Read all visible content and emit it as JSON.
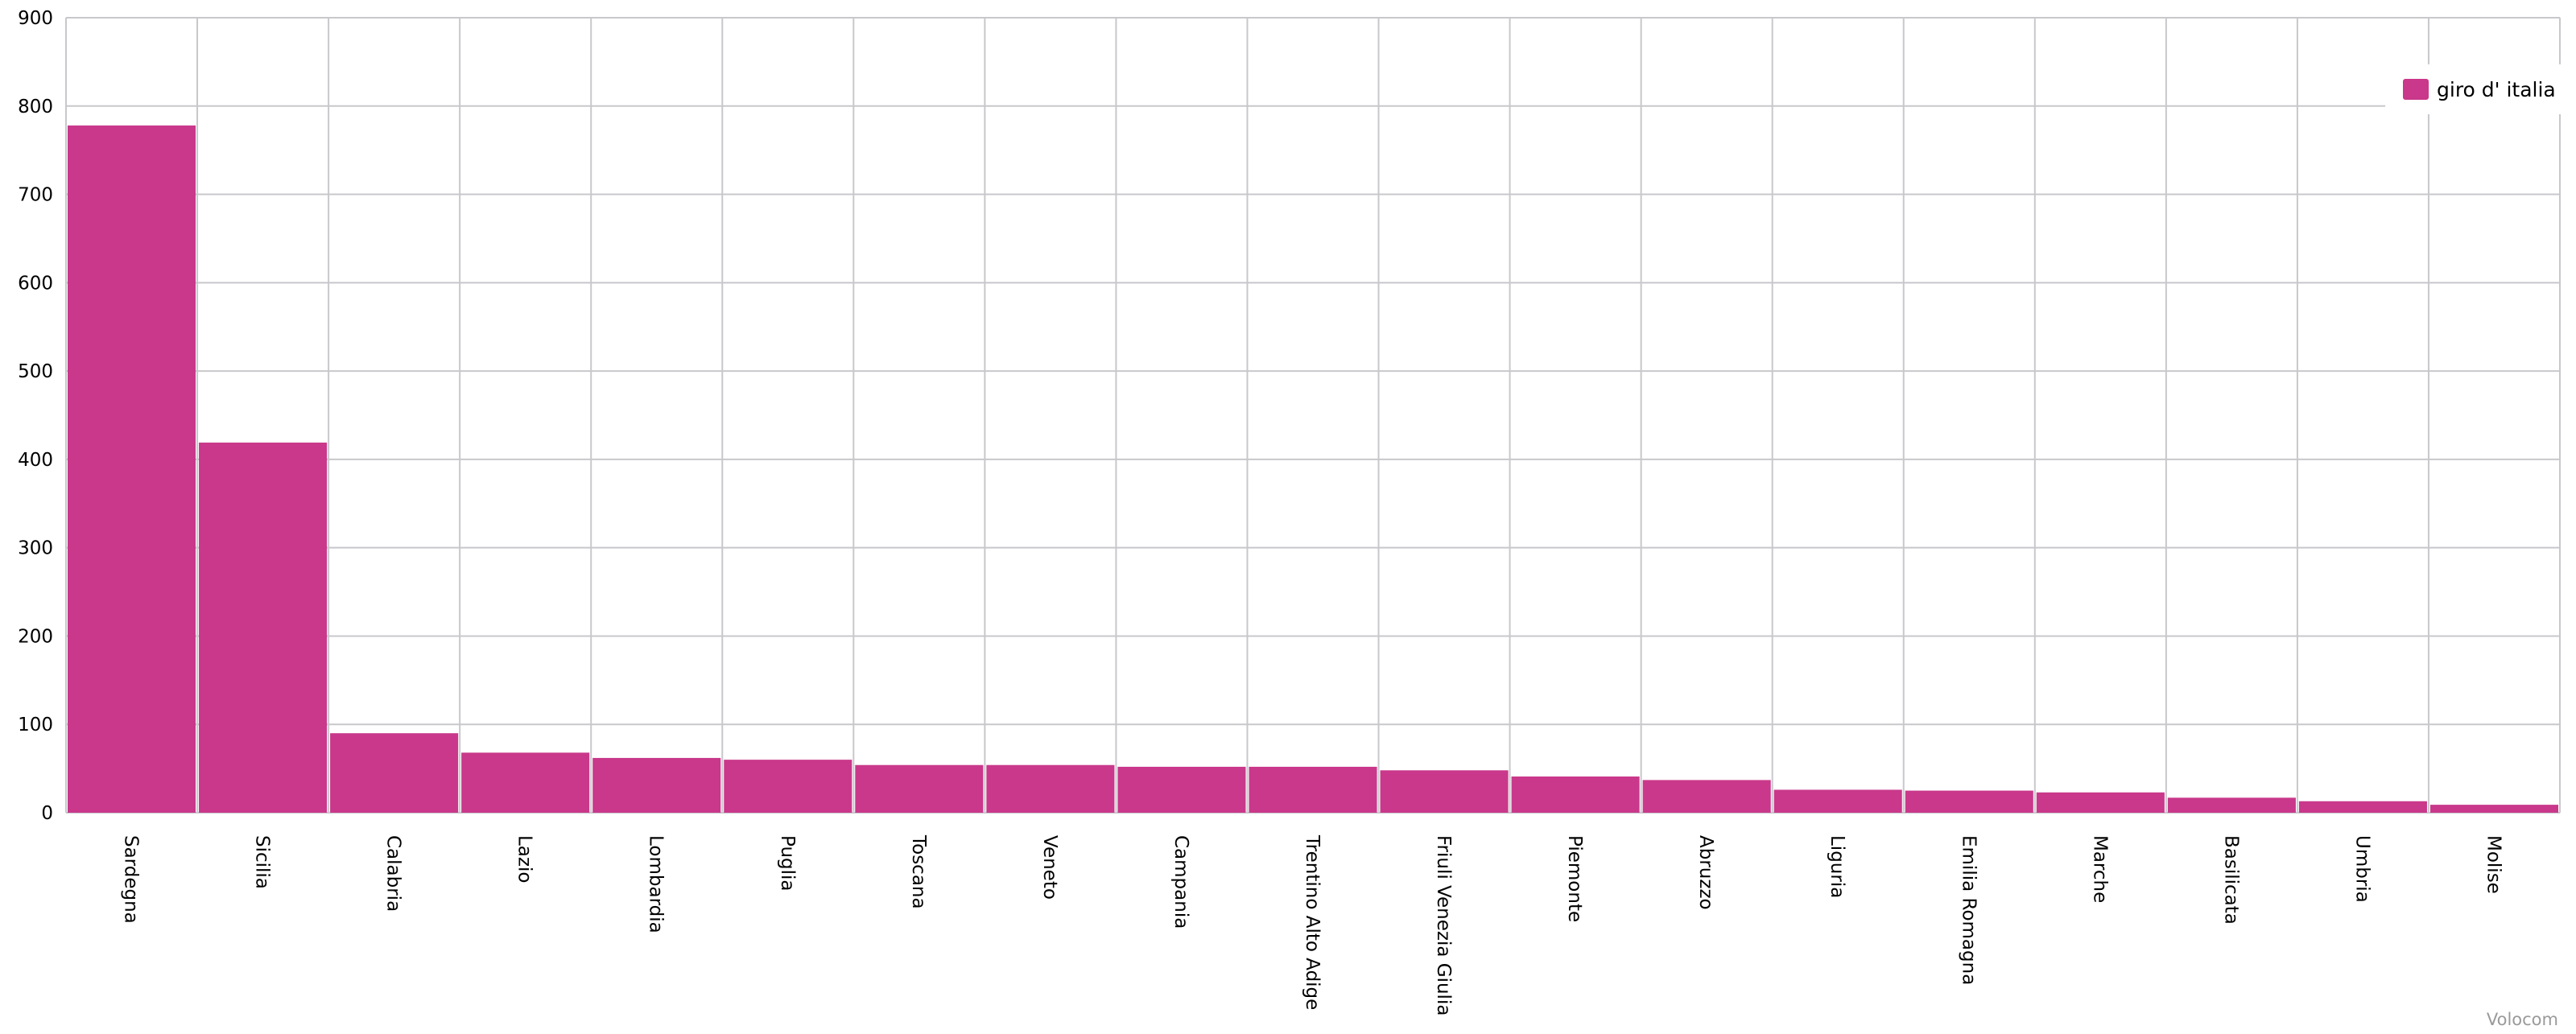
{
  "chart_data": {
    "type": "bar",
    "categories": [
      "Sardegna",
      "Sicilia",
      "Calabria",
      "Lazio",
      "Lombardia",
      "Puglia",
      "Toscana",
      "Veneto",
      "Campania",
      "Trentino Alto Adige",
      "Friuli Venezia Giulia",
      "Piemonte",
      "Abruzzo",
      "Liguria",
      "Emilia Romagna",
      "Marche",
      "Basilicata",
      "Umbria",
      "Molise"
    ],
    "series": [
      {
        "name": "giro d' italia",
        "values": [
          778,
          419,
          90,
          68,
          62,
          60,
          54,
          54,
          52,
          52,
          48,
          41,
          37,
          26,
          25,
          23,
          17,
          13,
          9
        ]
      }
    ],
    "title": "",
    "xlabel": "",
    "ylabel": "",
    "ylim": [
      0,
      900
    ],
    "yticks": [
      0,
      100,
      200,
      300,
      400,
      500,
      600,
      700,
      800,
      900
    ],
    "grid": true,
    "legend": "top-right",
    "bar_color": "#c9388a",
    "grid_color": "#c8c8cc"
  },
  "credit": "Volocom"
}
